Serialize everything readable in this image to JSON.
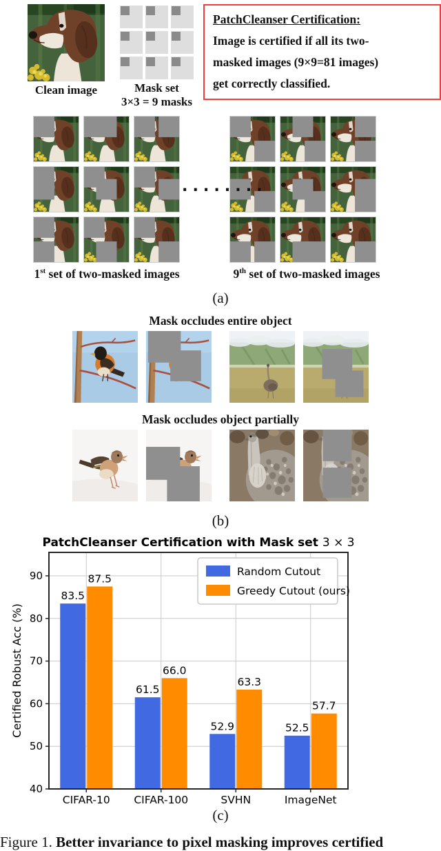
{
  "colors": {
    "mask_gray": "#8f8f8f",
    "tile_bg": "#dedede",
    "tile_square": "#8a8a8a",
    "red_border": "#f23b3b",
    "bar_blue": "#4169e1",
    "bar_orange": "#ff8c00"
  },
  "section_a": {
    "clean_image_label": "Clean image",
    "mask_set_label_line1": "Mask set",
    "mask_set_label_line2": "3×3 = 9 masks",
    "mask_set_icon": {
      "rows": 3,
      "cols": 3
    },
    "cert_box": {
      "title": "PatchCleanser Certification:",
      "lines": [
        "Image is certified if all its two-",
        "masked images (9×9=81 images)",
        "get correctly classified."
      ]
    },
    "dots": "........",
    "set_labels": [
      {
        "num": "1",
        "sup": "st",
        "rest": " set of two-masked images"
      },
      {
        "num": "9",
        "sup": "th",
        "rest": " set of two-masked images"
      }
    ],
    "panel_label": "(a)",
    "masking": {
      "offsets": [
        0,
        27,
        54
      ],
      "size": 46,
      "fixed_index_set1": 0,
      "fixed_index_set9": 8
    }
  },
  "section_b": {
    "heading_entire": "Mask occludes entire object",
    "heading_partial": "Mask occludes object partially",
    "rows": [
      {
        "figures": [
          {
            "base": "art-bird",
            "name": "bird-on-branch-photo",
            "masks": []
          },
          {
            "base": "art-bird",
            "name": "bird-on-branch-masked",
            "masks": [
              [
                3,
                0,
                50,
                44
              ],
              [
                37,
                27,
                47,
                43
              ]
            ]
          },
          {
            "base": "art-ostrich",
            "name": "ostrich-field-photo",
            "masks": []
          },
          {
            "base": "art-ostrich",
            "name": "ostrich-field-masked",
            "masks": [
              [
                29,
                25,
                46,
                42
              ],
              [
                49,
                55,
                43,
                37
              ]
            ]
          }
        ]
      },
      {
        "figures": [
          {
            "base": "art-finch",
            "name": "finch-on-snow-photo",
            "masks": []
          },
          {
            "base": "art-finch",
            "name": "finch-on-snow-masked",
            "masks": [
              [
                0,
                24,
                52,
                46
              ],
              [
                32,
                51,
                50,
                49
              ]
            ]
          },
          {
            "base": "art-bustard",
            "name": "bustard-closeup-photo",
            "masks": []
          },
          {
            "base": "art-bustard",
            "name": "bustard-closeup-masked",
            "masks": [
              [
                30,
                0,
                44,
                44
              ],
              [
                30,
                53,
                44,
                42
              ]
            ]
          }
        ]
      }
    ],
    "panel_label": "(b)"
  },
  "chart_data": {
    "type": "bar",
    "title_bold": "PatchCleanser Certification with Mask set ",
    "title_math": "3 × 3",
    "categories": [
      "CIFAR-10",
      "CIFAR-100",
      "SVHN",
      "ImageNet"
    ],
    "series": [
      {
        "name": "Random Cutout",
        "color": "#4169e1",
        "values": [
          83.5,
          61.5,
          52.9,
          52.5
        ]
      },
      {
        "name": "Greedy Cutout (ours)",
        "color": "#ff8c00",
        "values": [
          87.5,
          66.0,
          63.3,
          57.7
        ]
      }
    ],
    "ylabel": "Certified Robust Acc (%)",
    "yticks": [
      40,
      50,
      60,
      70,
      80,
      90
    ],
    "ylim": [
      40,
      95.5
    ],
    "grid": true,
    "legend_position": "upper right",
    "panel_label": "(c)"
  },
  "caption": {
    "prefix": "Figure 1.",
    "bold_text": "Better invariance to pixel masking improves certified"
  }
}
